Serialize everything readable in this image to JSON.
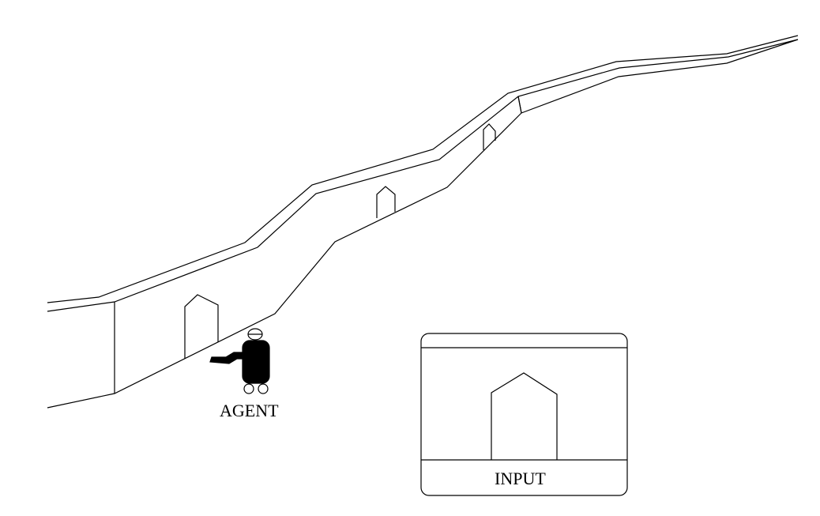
{
  "diagram": {
    "agent_label": "AGENT",
    "input_label": "INPUT",
    "line_color": "#000000",
    "background_color": "#ffffff",
    "agent_body_color": "#000000",
    "elements": [
      "corridor",
      "door-1",
      "door-2",
      "door-3",
      "door-4",
      "agent-figure",
      "input-view-panel"
    ]
  }
}
